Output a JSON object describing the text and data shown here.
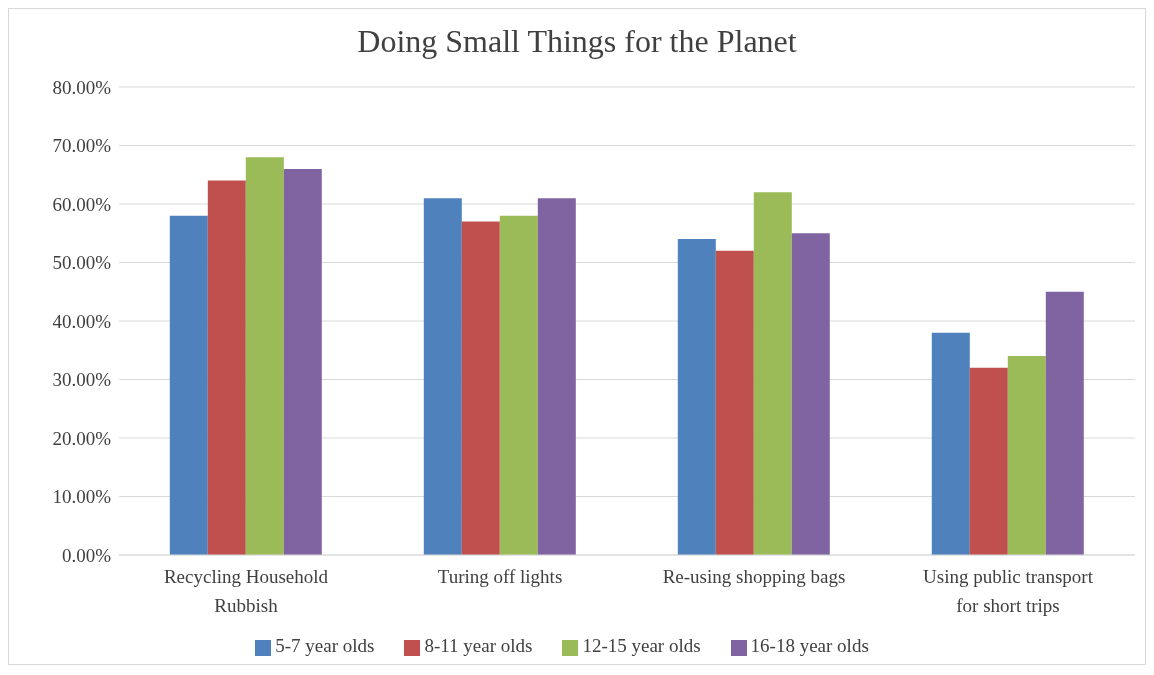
{
  "chart_data": {
    "type": "bar",
    "title": "Doing Small Things for the Planet",
    "categories": [
      "Recycling Household Rubbish",
      "Turing off lights",
      "Re-using shopping bags",
      "Using public transport for short trips"
    ],
    "series": [
      {
        "name": "5-7 year olds",
        "color": "#4f81bd",
        "values": [
          58,
          61,
          54,
          38
        ]
      },
      {
        "name": "8-11 year olds",
        "color": "#c0504d",
        "values": [
          64,
          57,
          52,
          32
        ]
      },
      {
        "name": "12-15 year olds",
        "color": "#9bbb59",
        "values": [
          68,
          58,
          62,
          34
        ]
      },
      {
        "name": "16-18 year olds",
        "color": "#8064a2",
        "values": [
          66,
          61,
          55,
          45
        ]
      }
    ],
    "ylim": [
      0,
      80
    ],
    "yticks": [
      {
        "value": 0,
        "label": "0.00%"
      },
      {
        "value": 10,
        "label": "10.00%"
      },
      {
        "value": 20,
        "label": "20.00%"
      },
      {
        "value": 30,
        "label": "30.00%"
      },
      {
        "value": 40,
        "label": "40.00%"
      },
      {
        "value": 50,
        "label": "50.00%"
      },
      {
        "value": 60,
        "label": "60.00%"
      },
      {
        "value": 70,
        "label": "70.00%"
      },
      {
        "value": 80,
        "label": "80.00%"
      }
    ],
    "grid": "y",
    "legend": "bottom"
  }
}
